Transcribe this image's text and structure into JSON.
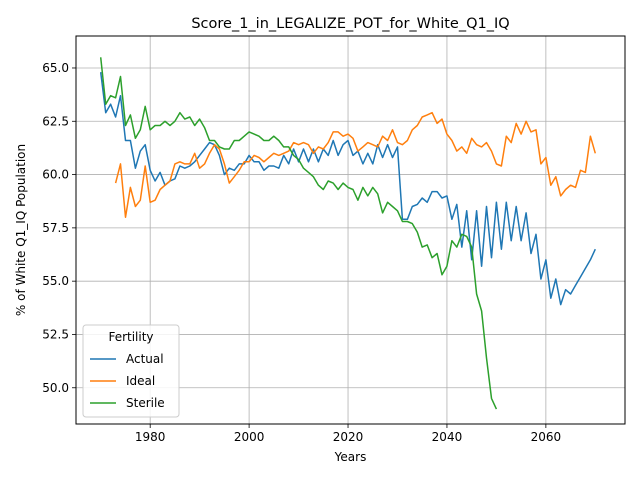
{
  "chart_data": {
    "type": "line",
    "title": "Score_1_in_LEGALIZE_POT_for_White_Q1_IQ",
    "xlabel": "Years",
    "ylabel": "% of White Q1_IQ Population",
    "xlim": [
      1965,
      2076
    ],
    "ylim": [
      48.3,
      66.5
    ],
    "xticks": [
      1980,
      2000,
      2020,
      2040,
      2060
    ],
    "yticks": [
      50.0,
      52.5,
      55.0,
      57.5,
      60.0,
      62.5,
      65.0
    ],
    "ytick_labels": [
      "50.0",
      "52.5",
      "55.0",
      "57.5",
      "60.0",
      "62.5",
      "65.0"
    ],
    "grid": true,
    "legend": {
      "title": "Fertility",
      "location": "lower-left"
    },
    "series": [
      {
        "name": "Actual",
        "color": "#1f77b4",
        "x": [
          1970,
          1971,
          1972,
          1973,
          1974,
          1975,
          1976,
          1977,
          1978,
          1979,
          1980,
          1981,
          1982,
          1983,
          1984,
          1985,
          1986,
          1987,
          1988,
          1989,
          1990,
          1991,
          1992,
          1993,
          1994,
          1995,
          1996,
          1997,
          1998,
          1999,
          2000,
          2001,
          2002,
          2003,
          2004,
          2005,
          2006,
          2007,
          2008,
          2009,
          2010,
          2011,
          2012,
          2013,
          2014,
          2015,
          2016,
          2017,
          2018,
          2019,
          2020,
          2021,
          2022,
          2023,
          2024,
          2025,
          2026,
          2027,
          2028,
          2029,
          2030,
          2031,
          2032,
          2033,
          2034,
          2035,
          2036,
          2037,
          2038,
          2039,
          2040,
          2041,
          2042,
          2043,
          2044,
          2045,
          2046,
          2047,
          2048,
          2049,
          2050,
          2051,
          2052,
          2053,
          2054,
          2055,
          2056,
          2057,
          2058,
          2059,
          2060,
          2061,
          2062,
          2063,
          2064,
          2065,
          2066,
          2067,
          2068,
          2069,
          2070
        ],
        "values": [
          64.8,
          62.9,
          63.3,
          62.7,
          63.7,
          61.6,
          61.6,
          60.3,
          61.1,
          61.4,
          60.2,
          59.7,
          60.1,
          59.5,
          59.7,
          59.8,
          60.4,
          60.3,
          60.4,
          60.6,
          60.9,
          61.2,
          61.5,
          61.4,
          60.9,
          60.0,
          60.3,
          60.2,
          60.5,
          60.5,
          60.9,
          60.6,
          60.6,
          60.2,
          60.4,
          60.4,
          60.3,
          60.9,
          60.5,
          61.2,
          60.6,
          61.2,
          60.6,
          61.2,
          60.6,
          61.2,
          60.9,
          61.6,
          60.9,
          61.4,
          61.6,
          60.9,
          61.1,
          60.5,
          61.0,
          60.5,
          61.4,
          60.8,
          61.4,
          60.8,
          61.3,
          57.9,
          57.9,
          58.5,
          58.6,
          58.9,
          58.7,
          59.2,
          59.2,
          58.9,
          59.0,
          57.9,
          58.6,
          56.6,
          58.3,
          56.0,
          58.3,
          55.7,
          58.5,
          56.1,
          58.7,
          56.5,
          58.7,
          56.9,
          58.5,
          56.9,
          58.2,
          56.3,
          57.2,
          55.1,
          56.0,
          54.2,
          55.1,
          53.9,
          54.6,
          54.4,
          54.8,
          55.2,
          55.6,
          56.0,
          56.5
        ]
      },
      {
        "name": "Ideal",
        "color": "#ff7f0e",
        "x": [
          1973,
          1974,
          1975,
          1976,
          1977,
          1978,
          1979,
          1980,
          1981,
          1982,
          1983,
          1984,
          1985,
          1986,
          1987,
          1988,
          1989,
          1990,
          1991,
          1992,
          1993,
          1994,
          1995,
          1996,
          1997,
          1998,
          1999,
          2000,
          2001,
          2002,
          2003,
          2004,
          2005,
          2006,
          2007,
          2008,
          2009,
          2010,
          2011,
          2012,
          2013,
          2014,
          2015,
          2016,
          2017,
          2018,
          2019,
          2020,
          2021,
          2022,
          2023,
          2024,
          2025,
          2026,
          2027,
          2028,
          2029,
          2030,
          2031,
          2032,
          2033,
          2034,
          2035,
          2036,
          2037,
          2038,
          2039,
          2040,
          2041,
          2042,
          2043,
          2044,
          2045,
          2046,
          2047,
          2048,
          2049,
          2050,
          2051,
          2052,
          2053,
          2054,
          2055,
          2056,
          2057,
          2058,
          2059,
          2060,
          2061,
          2062,
          2063,
          2064,
          2065,
          2066,
          2067,
          2068,
          2069,
          2070
        ],
        "values": [
          59.6,
          60.5,
          58.0,
          59.4,
          58.5,
          58.8,
          60.4,
          58.7,
          58.8,
          59.3,
          59.5,
          59.7,
          60.5,
          60.6,
          60.5,
          60.5,
          61.0,
          60.3,
          60.5,
          61.0,
          61.4,
          61.2,
          60.5,
          59.6,
          59.9,
          60.2,
          60.6,
          60.6,
          60.9,
          60.8,
          60.6,
          60.8,
          61.0,
          60.9,
          61.0,
          61.1,
          61.5,
          61.4,
          61.5,
          61.4,
          61.0,
          61.3,
          61.2,
          61.5,
          62.0,
          62.0,
          61.8,
          61.9,
          61.7,
          61.1,
          61.3,
          61.5,
          61.4,
          61.3,
          61.8,
          61.6,
          62.1,
          61.5,
          61.4,
          61.6,
          62.1,
          62.3,
          62.7,
          62.8,
          62.9,
          62.4,
          62.6,
          61.9,
          61.6,
          61.1,
          61.3,
          61.0,
          61.7,
          61.4,
          61.3,
          61.5,
          61.1,
          60.5,
          60.4,
          61.8,
          61.5,
          62.4,
          61.9,
          62.5,
          62.0,
          62.1,
          60.5,
          60.8,
          59.5,
          59.9,
          59.0,
          59.3,
          59.5,
          59.4,
          60.2,
          60.1,
          61.8,
          61.0
        ]
      },
      {
        "name": "Sterile",
        "color": "#2ca02c",
        "x": [
          1970,
          1971,
          1972,
          1973,
          1974,
          1975,
          1976,
          1977,
          1978,
          1979,
          1980,
          1981,
          1982,
          1983,
          1984,
          1985,
          1986,
          1987,
          1988,
          1989,
          1990,
          1991,
          1992,
          1993,
          1994,
          1995,
          1996,
          1997,
          1998,
          1999,
          2000,
          2001,
          2002,
          2003,
          2004,
          2005,
          2006,
          2007,
          2008,
          2009,
          2010,
          2011,
          2012,
          2013,
          2014,
          2015,
          2016,
          2017,
          2018,
          2019,
          2020,
          2021,
          2022,
          2023,
          2024,
          2025,
          2026,
          2027,
          2028,
          2029,
          2030,
          2031,
          2032,
          2033,
          2034,
          2035,
          2036,
          2037,
          2038,
          2039,
          2040,
          2041,
          2042,
          2043,
          2044,
          2045,
          2046,
          2047,
          2048,
          2049,
          2050
        ],
        "values": [
          65.5,
          63.3,
          63.7,
          63.6,
          64.6,
          62.3,
          62.8,
          61.7,
          62.1,
          63.2,
          62.1,
          62.3,
          62.3,
          62.5,
          62.3,
          62.5,
          62.9,
          62.6,
          62.7,
          62.3,
          62.6,
          62.2,
          61.6,
          61.6,
          61.3,
          61.2,
          61.2,
          61.6,
          61.6,
          61.8,
          62.0,
          61.9,
          61.8,
          61.6,
          61.6,
          61.8,
          61.6,
          61.3,
          61.3,
          60.9,
          60.7,
          60.3,
          60.1,
          59.9,
          59.5,
          59.3,
          59.7,
          59.6,
          59.3,
          59.6,
          59.4,
          59.3,
          58.8,
          59.4,
          59.0,
          59.4,
          59.1,
          58.2,
          58.7,
          58.5,
          58.3,
          57.8,
          57.8,
          57.7,
          57.3,
          56.6,
          56.7,
          56.1,
          56.3,
          55.3,
          55.7,
          56.9,
          56.6,
          57.2,
          57.1,
          56.6,
          54.4,
          53.6,
          51.4,
          49.5,
          49.0
        ]
      }
    ]
  }
}
